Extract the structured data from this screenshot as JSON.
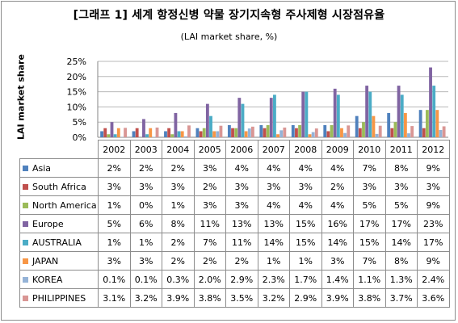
{
  "chart_data": {
    "type": "bar",
    "title": "[그래프 1] 세계 항정신병 약물 장기지속형 주사제형 시장점유율",
    "subtitle": "(LAI market share, %)",
    "ylabel": "LAI market share",
    "ylim": [
      0,
      25
    ],
    "yticks": [
      "0%",
      "5%",
      "10%",
      "15%",
      "20%",
      "25%"
    ],
    "grid": true,
    "categories": [
      "2002",
      "2003",
      "2004",
      "2005",
      "2006",
      "2007",
      "2008",
      "2009",
      "2010",
      "2011",
      "2012"
    ],
    "series": [
      {
        "name": "Asia",
        "color": "#4f81bd",
        "values": [
          2,
          2,
          2,
          3,
          4,
          4,
          4,
          4,
          7,
          8,
          9
        ],
        "labels": [
          "2%",
          "2%",
          "2%",
          "3%",
          "4%",
          "4%",
          "4%",
          "4%",
          "7%",
          "8%",
          "9%"
        ]
      },
      {
        "name": "South Africa",
        "color": "#c0504d",
        "values": [
          3,
          3,
          3,
          2,
          3,
          3,
          3,
          2,
          3,
          3,
          3
        ],
        "labels": [
          "3%",
          "3%",
          "3%",
          "2%",
          "3%",
          "3%",
          "3%",
          "2%",
          "3%",
          "3%",
          "3%"
        ]
      },
      {
        "name": "North America",
        "color": "#9bbb59",
        "values": [
          1,
          0,
          1,
          3,
          3,
          4,
          4,
          4,
          5,
          5,
          9
        ],
        "labels": [
          "1%",
          "0%",
          "1%",
          "3%",
          "3%",
          "4%",
          "4%",
          "4%",
          "5%",
          "5%",
          "9%"
        ]
      },
      {
        "name": "Europe",
        "color": "#8064a2",
        "values": [
          5,
          6,
          8,
          11,
          13,
          13,
          15,
          16,
          17,
          17,
          23
        ],
        "labels": [
          "5%",
          "6%",
          "8%",
          "11%",
          "13%",
          "13%",
          "15%",
          "16%",
          "17%",
          "17%",
          "23%"
        ]
      },
      {
        "name": "AUSTRALIA",
        "color": "#4bacc6",
        "values": [
          1,
          1,
          2,
          7,
          11,
          14,
          15,
          14,
          15,
          14,
          17
        ],
        "labels": [
          "1%",
          "1%",
          "2%",
          "7%",
          "11%",
          "14%",
          "15%",
          "14%",
          "15%",
          "14%",
          "17%"
        ]
      },
      {
        "name": "JAPAN",
        "color": "#f79646",
        "values": [
          3,
          3,
          2,
          2,
          2,
          1,
          1,
          3,
          7,
          8,
          9
        ],
        "labels": [
          "3%",
          "3%",
          "2%",
          "2%",
          "2%",
          "1%",
          "1%",
          "3%",
          "7%",
          "8%",
          "9%"
        ]
      },
      {
        "name": "KOREA",
        "color": "#95b3d7",
        "values": [
          0.1,
          0.1,
          0.3,
          2.0,
          2.9,
          2.3,
          1.7,
          1.4,
          1.1,
          1.3,
          2.4
        ],
        "labels": [
          "0.1%",
          "0.1%",
          "0.3%",
          "2.0%",
          "2.9%",
          "2.3%",
          "1.7%",
          "1.4%",
          "1.1%",
          "1.3%",
          "2.4%"
        ]
      },
      {
        "name": "PHILIPPINES",
        "color": "#d99694",
        "values": [
          3.1,
          3.2,
          3.9,
          3.8,
          3.5,
          3.2,
          2.9,
          3.9,
          3.8,
          3.7,
          3.6
        ],
        "labels": [
          "3.1%",
          "3.2%",
          "3.9%",
          "3.8%",
          "3.5%",
          "3.2%",
          "2.9%",
          "3.9%",
          "3.8%",
          "3.7%",
          "3.6%"
        ]
      }
    ]
  }
}
